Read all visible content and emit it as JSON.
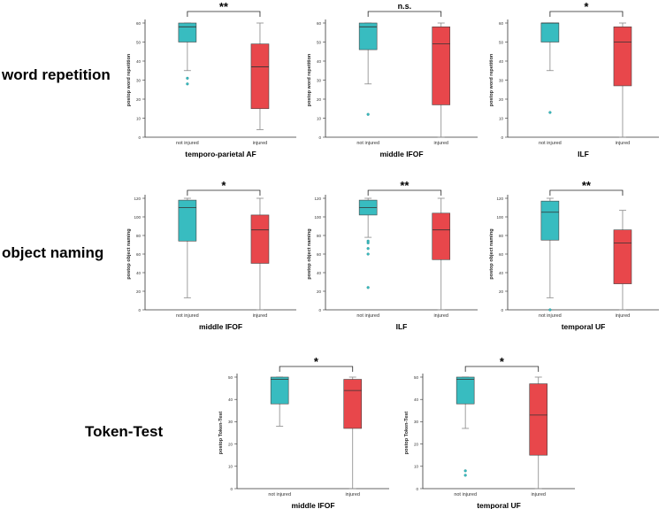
{
  "row_labels": {
    "word_repetition": "word repetition",
    "object_naming": "object naming",
    "token_test": "Token-Test"
  },
  "colors": {
    "not_injured": "#38bcc0",
    "injured": "#e8474b",
    "whisker": "#888888",
    "outlier": "#38bcc0"
  },
  "chart_data": [
    {
      "type": "box",
      "row": "word repetition",
      "title": "temporo-parietal AF",
      "ylabel": "postop word repetition",
      "ylim": [
        0,
        60
      ],
      "yticks": [
        0,
        10,
        20,
        30,
        40,
        50,
        60
      ],
      "categories": [
        "not injured",
        "injured"
      ],
      "significance": "**",
      "boxes": [
        {
          "min": 35,
          "q1": 50,
          "median": 58,
          "q3": 60,
          "max": 60,
          "outliers": [
            31,
            28
          ]
        },
        {
          "min": 4,
          "q1": 15,
          "median": 37,
          "q3": 49,
          "max": 60,
          "outliers": []
        }
      ]
    },
    {
      "type": "box",
      "row": "word repetition",
      "title": "middle IFOF",
      "ylabel": "postop word repetition",
      "ylim": [
        0,
        60
      ],
      "yticks": [
        0,
        10,
        20,
        30,
        40,
        50,
        60
      ],
      "categories": [
        "not injured",
        "injured"
      ],
      "significance": "n.s.",
      "boxes": [
        {
          "min": 28,
          "q1": 46,
          "median": 58,
          "q3": 60,
          "max": 60,
          "outliers": [
            12
          ]
        },
        {
          "min": 0,
          "q1": 17,
          "median": 49,
          "q3": 58,
          "max": 60,
          "outliers": []
        }
      ]
    },
    {
      "type": "box",
      "row": "word repetition",
      "title": "ILF",
      "ylabel": "postop word repetition",
      "ylim": [
        0,
        60
      ],
      "yticks": [
        0,
        10,
        20,
        30,
        40,
        50,
        60
      ],
      "categories": [
        "not injured",
        "injured"
      ],
      "significance": "*",
      "boxes": [
        {
          "min": 35,
          "q1": 50,
          "median": 60,
          "q3": 60,
          "max": 60,
          "outliers": [
            13
          ]
        },
        {
          "min": 0,
          "q1": 27,
          "median": 50,
          "q3": 58,
          "max": 60,
          "outliers": []
        }
      ]
    },
    {
      "type": "box",
      "row": "object naming",
      "title": "middle IFOF",
      "ylabel": "postop object naming",
      "ylim": [
        0,
        120
      ],
      "yticks": [
        0,
        20,
        40,
        60,
        80,
        100,
        120
      ],
      "categories": [
        "not injured",
        "injured"
      ],
      "significance": "*",
      "boxes": [
        {
          "min": 13,
          "q1": 74,
          "median": 110,
          "q3": 118,
          "max": 120,
          "outliers": []
        },
        {
          "min": 0,
          "q1": 50,
          "median": 86,
          "q3": 102,
          "max": 120,
          "outliers": []
        }
      ]
    },
    {
      "type": "box",
      "row": "object naming",
      "title": "ILF",
      "ylabel": "postop object naming",
      "ylim": [
        0,
        120
      ],
      "yticks": [
        0,
        20,
        40,
        60,
        80,
        100,
        120
      ],
      "categories": [
        "not injured",
        "injured"
      ],
      "significance": "**",
      "boxes": [
        {
          "min": 78,
          "q1": 102,
          "median": 110,
          "q3": 118,
          "max": 120,
          "outliers": [
            74,
            72,
            66,
            60,
            24
          ]
        },
        {
          "min": 0,
          "q1": 54,
          "median": 86,
          "q3": 104,
          "max": 120,
          "outliers": []
        }
      ]
    },
    {
      "type": "box",
      "row": "object naming",
      "title": "temporal UF",
      "ylabel": "postop object naming",
      "ylim": [
        0,
        120
      ],
      "yticks": [
        0,
        20,
        40,
        60,
        80,
        100,
        120
      ],
      "categories": [
        "not injured",
        "injured"
      ],
      "significance": "**",
      "boxes": [
        {
          "min": 13,
          "q1": 75,
          "median": 105,
          "q3": 117,
          "max": 120,
          "outliers": [
            0
          ]
        },
        {
          "min": 0,
          "q1": 28,
          "median": 72,
          "q3": 86,
          "max": 107,
          "outliers": []
        }
      ]
    },
    {
      "type": "box",
      "row": "Token-Test",
      "title": "middle IFOF",
      "ylabel": "postop Token-Test",
      "ylim": [
        0,
        50
      ],
      "yticks": [
        0,
        10,
        20,
        30,
        40,
        50
      ],
      "categories": [
        "not injured",
        "injured"
      ],
      "significance": "*",
      "boxes": [
        {
          "min": 28,
          "q1": 38,
          "median": 49,
          "q3": 50,
          "max": 50,
          "outliers": []
        },
        {
          "min": 0,
          "q1": 27,
          "median": 44,
          "q3": 49,
          "max": 50,
          "outliers": []
        }
      ]
    },
    {
      "type": "box",
      "row": "Token-Test",
      "title": "temporal UF",
      "ylabel": "postop Token-Test",
      "ylim": [
        0,
        50
      ],
      "yticks": [
        0,
        10,
        20,
        30,
        40,
        50
      ],
      "categories": [
        "not injured",
        "injured"
      ],
      "significance": "*",
      "boxes": [
        {
          "min": 27,
          "q1": 38,
          "median": 49,
          "q3": 50,
          "max": 50,
          "outliers": [
            8,
            6
          ]
        },
        {
          "min": 0,
          "q1": 15,
          "median": 33,
          "q3": 47,
          "max": 50,
          "outliers": []
        }
      ]
    }
  ]
}
